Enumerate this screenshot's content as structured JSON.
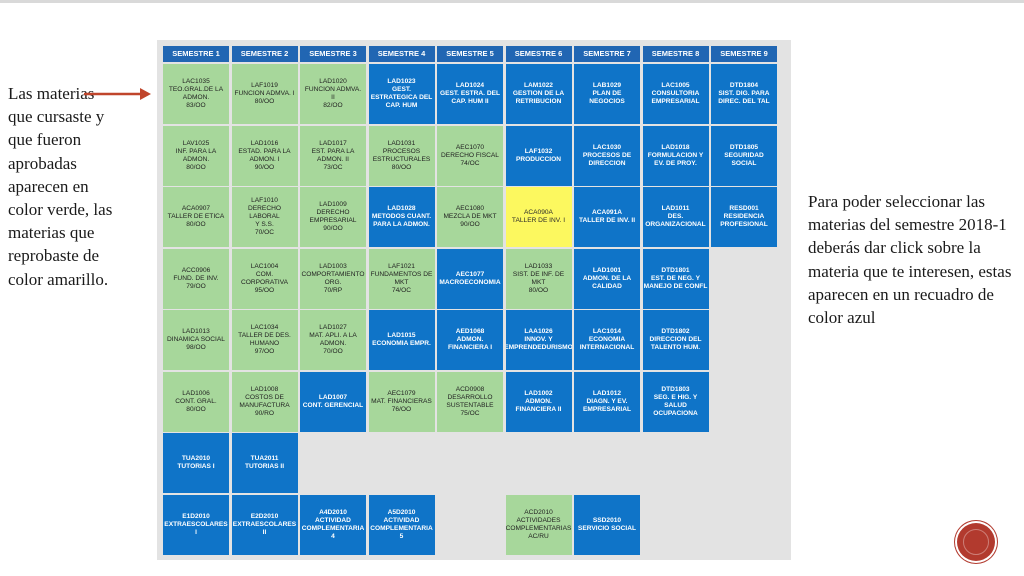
{
  "left_annotation": "Las materias que cursaste y que fueron aprobadas aparecen en color verde, las materias que reprobaste de color amarillo.",
  "right_annotation": "Para poder seleccionar las materias del semestre 2018-1 deberás dar click sobre la materia que te interesen, estas aparecen en un recuadro de color azul",
  "colors": {
    "approved": "#a7d79b",
    "available": "#0f74c8",
    "failed": "#fcf85f",
    "header": "#2166b3",
    "arrow": "#c0452b"
  },
  "semesters": [
    "SEMESTRE 1",
    "SEMESTRE 2",
    "SEMESTRE 3",
    "SEMESTRE 4",
    "SEMESTRE 5",
    "SEMESTRE 6",
    "SEMESTRE 7",
    "SEMESTRE 8",
    "SEMESTRE 9"
  ],
  "courses": [
    {
      "col": 0,
      "row": 0,
      "status": "green",
      "text": "LAC1035\nTEO.GRAL.DE LA\nADMON.\n83/OO"
    },
    {
      "col": 1,
      "row": 0,
      "status": "green",
      "text": "LAF1019\nFUNCION ADMVA. I\n80/OO"
    },
    {
      "col": 2,
      "row": 0,
      "status": "green",
      "text": "LAD1020\nFUNCION ADMVA.\nII\n82/OO"
    },
    {
      "col": 3,
      "row": 0,
      "status": "blue",
      "text": "LAD1023\nGEST.\nESTRATEGICA DEL\nCAP. HUM"
    },
    {
      "col": 4,
      "row": 0,
      "status": "blue",
      "text": "LAD1024\nGEST. ESTRA. DEL\nCAP. HUM II"
    },
    {
      "col": 5,
      "row": 0,
      "status": "blue",
      "text": "LAM1022\nGESTION DE LA\nRETRIBUCION"
    },
    {
      "col": 6,
      "row": 0,
      "status": "blue",
      "text": "LAB1029\nPLAN DE\nNEGOCIOS"
    },
    {
      "col": 7,
      "row": 0,
      "status": "blue",
      "text": "LAC1005\nCONSULTORIA\nEMPRESARIAL"
    },
    {
      "col": 8,
      "row": 0,
      "status": "blue",
      "text": "DTD1804\nSIST. DIG. PARA\nDIREC. DEL TAL"
    },
    {
      "col": 0,
      "row": 1,
      "status": "green",
      "text": "LAV1025\nINF. PARA LA\nADMON.\n80/OO"
    },
    {
      "col": 1,
      "row": 1,
      "status": "green",
      "text": "LAD1016\nESTAD. PARA LA\nADMON. I\n90/OO"
    },
    {
      "col": 2,
      "row": 1,
      "status": "green",
      "text": "LAD1017\nEST. PARA LA\nADMON. II\n73/OC"
    },
    {
      "col": 3,
      "row": 1,
      "status": "green",
      "text": "LAD1031\nPROCESOS\nESTRUCTURALES\n80/OO"
    },
    {
      "col": 4,
      "row": 1,
      "status": "green",
      "text": "AEC1070\nDERECHO FISCAL\n74/OC"
    },
    {
      "col": 5,
      "row": 1,
      "status": "blue",
      "text": "LAF1032\nPRODUCCION"
    },
    {
      "col": 6,
      "row": 1,
      "status": "blue",
      "text": "LAC1030\nPROCESOS DE\nDIRECCION"
    },
    {
      "col": 7,
      "row": 1,
      "status": "blue",
      "text": "LAD1018\nFORMULACION Y\nEV. DE PROY."
    },
    {
      "col": 8,
      "row": 1,
      "status": "blue",
      "text": "DTD1805\nSEGURIDAD\nSOCIAL"
    },
    {
      "col": 0,
      "row": 2,
      "status": "green",
      "text": "ACA0907\nTALLER DE ETICA\n80/OO"
    },
    {
      "col": 1,
      "row": 2,
      "status": "green",
      "text": "LAF1010\nDERECHO LABORAL\nY S.S.\n70/OC"
    },
    {
      "col": 2,
      "row": 2,
      "status": "green",
      "text": "LAD1009\nDERECHO\nEMPRESARIAL\n90/OO"
    },
    {
      "col": 3,
      "row": 2,
      "status": "blue",
      "text": "LAD1028\nMETODOS CUANT.\nPARA LA ADMON."
    },
    {
      "col": 4,
      "row": 2,
      "status": "green",
      "text": "AEC1080\nMEZCLA DE MKT\n90/OO"
    },
    {
      "col": 5,
      "row": 2,
      "status": "yellow",
      "text": "ACA090A\nTALLER DE INV. I"
    },
    {
      "col": 6,
      "row": 2,
      "status": "blue",
      "text": "ACA091A\nTALLER DE INV. II"
    },
    {
      "col": 7,
      "row": 2,
      "status": "blue",
      "text": "LAD1011\nDES.\nORGANIZACIONAL"
    },
    {
      "col": 8,
      "row": 2,
      "status": "blue",
      "text": "RESD001\nRESIDENCIA\nPROFESIONAL"
    },
    {
      "col": 0,
      "row": 3,
      "status": "green",
      "text": "ACC0906\nFUND. DE INV.\n79/OO"
    },
    {
      "col": 1,
      "row": 3,
      "status": "green",
      "text": "LAC1004\nCOM.\nCORPORATIVA\n95/OO"
    },
    {
      "col": 2,
      "row": 3,
      "status": "green",
      "text": "LAD1003\nCOMPORTAMIENTO\nORG.\n70/RP"
    },
    {
      "col": 3,
      "row": 3,
      "status": "green",
      "text": "LAF1021\nFUNDAMENTOS DE\nMKT\n74/OC"
    },
    {
      "col": 4,
      "row": 3,
      "status": "blue",
      "text": "AEC1077\nMACROECONOMIA"
    },
    {
      "col": 5,
      "row": 3,
      "status": "green",
      "text": "LAD1033\nSIST. DE INF. DE\nMKT\n80/OO"
    },
    {
      "col": 6,
      "row": 3,
      "status": "blue",
      "text": "LAD1001\nADMON. DE LA\nCALIDAD"
    },
    {
      "col": 7,
      "row": 3,
      "status": "blue",
      "text": "DTD1801\nEST. DE NEG. Y\nMANEJO DE CONFL"
    },
    {
      "col": 0,
      "row": 4,
      "status": "green",
      "text": "LAD1013\nDINAMICA SOCIAL\n98/OO"
    },
    {
      "col": 1,
      "row": 4,
      "status": "green",
      "text": "LAC1034\nTALLER DE DES.\nHUMANO\n97/OO"
    },
    {
      "col": 2,
      "row": 4,
      "status": "green",
      "text": "LAD1027\nMAT. APLI. A LA\nADMON.\n70/OO"
    },
    {
      "col": 3,
      "row": 4,
      "status": "blue",
      "text": "LAD1015\nECONOMIA EMPR."
    },
    {
      "col": 4,
      "row": 4,
      "status": "blue",
      "text": "AED1068\nADMON.\nFINANCIERA I"
    },
    {
      "col": 5,
      "row": 4,
      "status": "blue",
      "text": "LAA1026\nINNOV. Y\nEMPRENDEDURISMO"
    },
    {
      "col": 6,
      "row": 4,
      "status": "blue",
      "text": "LAC1014\nECONOMIA\nINTERNACIONAL"
    },
    {
      "col": 7,
      "row": 4,
      "status": "blue",
      "text": "DTD1802\nDIRECCION DEL\nTALENTO HUM."
    },
    {
      "col": 0,
      "row": 5,
      "status": "green",
      "text": "LAD1006\nCONT. GRAL.\n80/OO"
    },
    {
      "col": 1,
      "row": 5,
      "status": "green",
      "text": "LAD1008\nCOSTOS DE\nMANUFACTURA\n90/RO"
    },
    {
      "col": 2,
      "row": 5,
      "status": "blue",
      "text": "LAD1007\nCONT. GERENCIAL"
    },
    {
      "col": 3,
      "row": 5,
      "status": "green",
      "text": "AEC1079\nMAT. FINANCIERAS\n76/OO"
    },
    {
      "col": 4,
      "row": 5,
      "status": "green",
      "text": "ACD0908\nDESARROLLO\nSUSTENTABLE\n75/OC"
    },
    {
      "col": 5,
      "row": 5,
      "status": "blue",
      "text": "LAD1002\nADMON.\nFINANCIERA II"
    },
    {
      "col": 6,
      "row": 5,
      "status": "blue",
      "text": "LAD1012\nDIAGN. Y EV.\nEMPRESARIAL"
    },
    {
      "col": 7,
      "row": 5,
      "status": "blue",
      "text": "DTD1803\nSEG. E HIG. Y\nSALUD\nOCUPACIONA"
    },
    {
      "col": 0,
      "row": 6,
      "status": "blue",
      "text": "TUA2010\nTUTORIAS I"
    },
    {
      "col": 1,
      "row": 6,
      "status": "blue",
      "text": "TUA2011\nTUTORIAS II"
    },
    {
      "col": 0,
      "row": 7,
      "status": "blue",
      "text": "E1D2010\nEXTRAESCOLARES\nI"
    },
    {
      "col": 1,
      "row": 7,
      "status": "blue",
      "text": "E2D2010\nEXTRAESCOLARES\nII"
    },
    {
      "col": 2,
      "row": 7,
      "status": "blue",
      "text": "A4D2010\nACTIVIDAD\nCOMPLEMENTARIA\n4"
    },
    {
      "col": 3,
      "row": 7,
      "status": "blue",
      "text": "A5D2010\nACTIVIDAD\nCOMPLEMENTARIA\n5"
    },
    {
      "col": 5,
      "row": 7,
      "status": "green",
      "text": "ACD2010\nACTIVIDADES\nCOMPLEMENTARIAS\nAC/RU"
    },
    {
      "col": 6,
      "row": 7,
      "status": "blue",
      "text": "SSD2010\nSERVICIO SOCIAL"
    }
  ]
}
